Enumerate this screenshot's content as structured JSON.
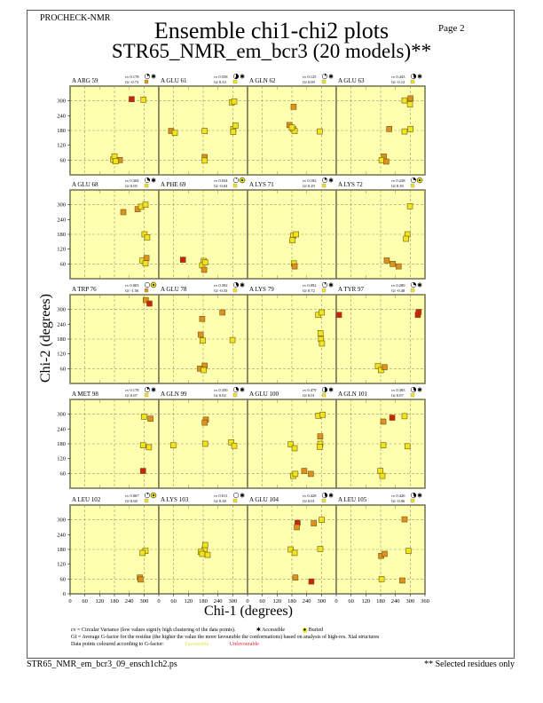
{
  "header": {
    "program": "PROCHECK-NMR",
    "page": "Page  2",
    "title": "Ensemble chi1-chi2 plots",
    "subtitle": "STR65_NMR_em_bcr3 (20 models)**"
  },
  "footer": {
    "cv_note": "cv = Circular Variance (low values signify high clustering of the data points).",
    "accessible": "Accessible",
    "buried": "Buried",
    "gf_note": "Gf = Average G-factor for the residue (the higher the value the more favourable the conformations) based on analysis of high-res. Xtal structures",
    "colour_note": "Data points coloured according to G-factor:",
    "favourable": "Favourable",
    "unfavourable": "Unfavourable",
    "filename": "STR65_NMR_em_bcr3_09_ensch1ch2.ps",
    "selected": "** Selected residues only"
  },
  "colors": {
    "panel": "#ffffb0",
    "fav": "#f2e41c",
    "mid": "#e0901c",
    "unfav": "#d02010",
    "frame": "#7a7a5a",
    "grid": "#a09870"
  },
  "chart_data": {
    "type": "scatter",
    "xlabel": "Chi-1 (degrees)",
    "ylabel": "Chi-2 (degrees)",
    "xlim": [
      0,
      360
    ],
    "ylim": [
      0,
      360
    ],
    "grid": true,
    "x_ticks": [
      0,
      60,
      120,
      180,
      240,
      300,
      360
    ],
    "y_ticks": [
      0,
      60,
      120,
      180,
      240,
      300
    ],
    "panels": [
      {
        "label": "A ARG 59",
        "cv": "cv 0.178",
        "gf": "Gf -0.73",
        "gf_class": "mid",
        "acc": "accessible",
        "cvf": 0.178,
        "points": [
          [
            250,
            307,
            "unfav"
          ],
          [
            298,
            305,
            "fav"
          ],
          [
            180,
            60,
            "fav"
          ],
          [
            175,
            62,
            "fav"
          ],
          [
            202,
            60,
            "mid"
          ],
          [
            180,
            75,
            "fav"
          ],
          [
            185,
            55,
            "fav"
          ]
        ]
      },
      {
        "label": "A GLU 61",
        "cv": "cv 0.558",
        "gf": "Gf 0.33",
        "gf_class": "fav",
        "acc": "accessible",
        "cvf": 0.558,
        "points": [
          [
            50,
            178,
            "mid"
          ],
          [
            65,
            170,
            "fav"
          ],
          [
            186,
            178,
            "fav"
          ],
          [
            296,
            294,
            "fav"
          ],
          [
            306,
            298,
            "fav"
          ],
          [
            302,
            186,
            "fav"
          ],
          [
            311,
            200,
            "fav"
          ],
          [
            302,
            174,
            "fav"
          ],
          [
            186,
            72,
            "mid"
          ],
          [
            186,
            58,
            "fav"
          ]
        ]
      },
      {
        "label": "A GLN 62",
        "cv": "cv 0.125",
        "gf": "Gf 0.09",
        "gf_class": "fav",
        "acc": "accessible",
        "cvf": 0.125,
        "points": [
          [
            187,
            276,
            "mid"
          ],
          [
            170,
            202,
            "mid"
          ],
          [
            185,
            186,
            "fav"
          ],
          [
            191,
            178,
            "fav"
          ],
          [
            180,
            192,
            "fav"
          ],
          [
            293,
            176,
            "fav"
          ]
        ]
      },
      {
        "label": "A GLU 63",
        "cv": "cv 0.443",
        "gf": "Gf -0.12",
        "gf_class": "fav",
        "acc": "accessible",
        "cvf": 0.443,
        "points": [
          [
            277,
            302,
            "fav"
          ],
          [
            301,
            310,
            "mid"
          ],
          [
            299,
            286,
            "fav"
          ],
          [
            215,
            186,
            "mid"
          ],
          [
            277,
            176,
            "fav"
          ],
          [
            301,
            186,
            "fav"
          ],
          [
            193,
            74,
            "mid"
          ],
          [
            184,
            60,
            "fav"
          ],
          [
            203,
            54,
            "mid"
          ]
        ]
      },
      {
        "label": "A GLU 68",
        "cv": "cv 0.304",
        "gf": "Gf 0.05",
        "gf_class": "fav",
        "acc": "accessible",
        "cvf": 0.304,
        "points": [
          [
            216,
            270,
            "mid"
          ],
          [
            274,
            282,
            "mid"
          ],
          [
            288,
            292,
            "fav"
          ],
          [
            306,
            300,
            "fav"
          ],
          [
            302,
            180,
            "fav"
          ],
          [
            313,
            168,
            "fav"
          ],
          [
            294,
            74,
            "fav"
          ],
          [
            310,
            84,
            "mid"
          ],
          [
            306,
            62,
            "fav"
          ]
        ]
      },
      {
        "label": "A PHE 69",
        "cv": "cv 0.034",
        "gf": "Gf -0.04",
        "gf_class": "fav",
        "acc": "buried",
        "cvf": 0.034,
        "points": [
          [
            98,
            77,
            "unfav"
          ],
          [
            182,
            72,
            "fav"
          ],
          [
            176,
            54,
            "fav"
          ],
          [
            184,
            36,
            "mid"
          ],
          [
            188,
            66,
            "fav"
          ]
        ]
      },
      {
        "label": "A LYS 71",
        "cv": "cv 0.182",
        "gf": "Gf 0.29",
        "gf_class": "fav",
        "acc": "accessible",
        "cvf": 0.182,
        "points": [
          [
            185,
            174,
            "fav"
          ],
          [
            197,
            180,
            "fav"
          ],
          [
            182,
            156,
            "fav"
          ],
          [
            188,
            62,
            "fav"
          ],
          [
            191,
            50,
            "mid"
          ]
        ]
      },
      {
        "label": "A LYS 72",
        "cv": "cv 0.238",
        "gf": "Gf 0.39",
        "gf_class": "fav",
        "acc": "buried",
        "cvf": 0.238,
        "points": [
          [
            299,
            294,
            "fav"
          ],
          [
            289,
            180,
            "fav"
          ],
          [
            283,
            162,
            "fav"
          ],
          [
            205,
            74,
            "mid"
          ],
          [
            229,
            60,
            "mid"
          ],
          [
            253,
            50,
            "mid"
          ]
        ]
      },
      {
        "label": "A TRP 76",
        "cv": "cv 0.003",
        "gf": "Gf -1.56",
        "gf_class": "mid",
        "acc": "buried",
        "cvf": 0.003,
        "points": [
          [
            307,
            338,
            "mid"
          ],
          [
            322,
            324,
            "unfav"
          ]
        ]
      },
      {
        "label": "A GLU 78",
        "cv": "cv 0.392",
        "gf": "Gf -0.33",
        "gf_class": "fav",
        "acc": "accessible",
        "cvf": 0.392,
        "points": [
          [
            258,
            288,
            "mid"
          ],
          [
            176,
            262,
            "mid"
          ],
          [
            170,
            198,
            "mid"
          ],
          [
            178,
            174,
            "fav"
          ],
          [
            299,
            176,
            "fav"
          ],
          [
            186,
            72,
            "mid"
          ],
          [
            167,
            60,
            "mid"
          ],
          [
            182,
            54,
            "fav"
          ]
        ]
      },
      {
        "label": "A LYS 79",
        "cv": "cv 0.092",
        "gf": "Gf 0.72",
        "gf_class": "fav",
        "acc": "accessible",
        "cvf": 0.092,
        "points": [
          [
            287,
            278,
            "fav"
          ],
          [
            301,
            288,
            "fav"
          ],
          [
            296,
            204,
            "fav"
          ],
          [
            298,
            180,
            "fav"
          ],
          [
            302,
            162,
            "fav"
          ]
        ]
      },
      {
        "label": "A TYR 97",
        "cv": "cv 0.280",
        "gf": "Gf -0.48",
        "gf_class": "fav",
        "acc": "accessible",
        "cvf": 0.28,
        "points": [
          [
            11,
            278,
            "unfav"
          ],
          [
            334,
            290,
            "unfav"
          ],
          [
            331,
            278,
            "unfav"
          ],
          [
            169,
            70,
            "fav"
          ],
          [
            181,
            54,
            "fav"
          ],
          [
            196,
            66,
            "mid"
          ]
        ]
      },
      {
        "label": "A MET 98",
        "cv": "cv 0.178",
        "gf": "Gf 0.07",
        "gf_class": "fav",
        "acc": "accessible",
        "cvf": 0.178,
        "points": [
          [
            300,
            290,
            "fav"
          ],
          [
            326,
            282,
            "mid"
          ],
          [
            296,
            174,
            "fav"
          ],
          [
            320,
            166,
            "fav"
          ],
          [
            296,
            70,
            "unfav"
          ]
        ]
      },
      {
        "label": "A GLN 99",
        "cv": "cv 0.350",
        "gf": "Gf 0.02",
        "gf_class": "fav",
        "acc": "accessible",
        "cvf": 0.35,
        "points": [
          [
            191,
            278,
            "mid"
          ],
          [
            186,
            266,
            "mid"
          ],
          [
            59,
            174,
            "fav"
          ],
          [
            188,
            180,
            "fav"
          ],
          [
            294,
            186,
            "fav"
          ],
          [
            306,
            172,
            "fav"
          ]
        ]
      },
      {
        "label": "A GLU 100",
        "cv": "cv 0.479",
        "gf": "Gf 0.01",
        "gf_class": "fav",
        "acc": "accessible",
        "cvf": 0.479,
        "points": [
          [
            287,
            294,
            "fav"
          ],
          [
            305,
            298,
            "fav"
          ],
          [
            295,
            210,
            "mid"
          ],
          [
            295,
            180,
            "fav"
          ],
          [
            293,
            168,
            "fav"
          ],
          [
            175,
            178,
            "fav"
          ],
          [
            191,
            162,
            "fav"
          ],
          [
            185,
            50,
            "fav"
          ],
          [
            194,
            58,
            "fav"
          ],
          [
            230,
            70,
            "mid"
          ],
          [
            257,
            58,
            "mid"
          ]
        ]
      },
      {
        "label": "A GLN 101",
        "cv": "cv 0.383",
        "gf": "Gf 0.07",
        "gf_class": "fav",
        "acc": "accessible",
        "cvf": 0.383,
        "points": [
          [
            191,
            270,
            "mid"
          ],
          [
            227,
            286,
            "unfav"
          ],
          [
            277,
            292,
            "fav"
          ],
          [
            191,
            174,
            "fav"
          ],
          [
            289,
            170,
            "fav"
          ],
          [
            179,
            70,
            "fav"
          ],
          [
            187,
            50,
            "fav"
          ]
        ]
      },
      {
        "label": "A LEU 102",
        "cv": "cv 0.067",
        "gf": "Gf 0.68",
        "gf_class": "fav",
        "acc": "buried",
        "cvf": 0.067,
        "points": [
          [
            306,
            174,
            "fav"
          ],
          [
            294,
            166,
            "fav"
          ],
          [
            283,
            66,
            "mid"
          ],
          [
            286,
            58,
            "mid"
          ]
        ]
      },
      {
        "label": "A LYS 103",
        "cv": "cv 0.011",
        "gf": "Gf 0.38",
        "gf_class": "fav",
        "acc": "accessible",
        "cvf": 0.011,
        "points": [
          [
            186,
            180,
            "fav"
          ],
          [
            170,
            170,
            "fav"
          ],
          [
            188,
            198,
            "fav"
          ],
          [
            198,
            158,
            "fav"
          ],
          [
            176,
            162,
            "fav"
          ]
        ]
      },
      {
        "label": "A GLU 104",
        "cv": "cv 0.428",
        "gf": "Gf 0.01",
        "gf_class": "fav",
        "acc": "accessible",
        "cvf": 0.428,
        "points": [
          [
            203,
            288,
            "unfav"
          ],
          [
            200,
            270,
            "mid"
          ],
          [
            269,
            286,
            "mid"
          ],
          [
            301,
            300,
            "fav"
          ],
          [
            295,
            182,
            "fav"
          ],
          [
            175,
            180,
            "fav"
          ],
          [
            191,
            166,
            "fav"
          ],
          [
            194,
            66,
            "mid"
          ],
          [
            259,
            50,
            "unfav"
          ]
        ]
      },
      {
        "label": "A LEU 105",
        "cv": "cv 0.426",
        "gf": "Gf -0.06",
        "gf_class": "fav",
        "acc": "accessible",
        "cvf": 0.426,
        "points": [
          [
            277,
            302,
            "mid"
          ],
          [
            293,
            174,
            "fav"
          ],
          [
            182,
            154,
            "mid"
          ],
          [
            196,
            162,
            "mid"
          ],
          [
            184,
            60,
            "fav"
          ],
          [
            268,
            54,
            "mid"
          ]
        ]
      }
    ]
  }
}
